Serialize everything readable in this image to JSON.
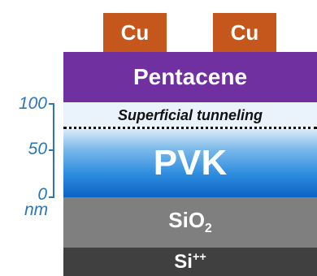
{
  "electrodes": [
    {
      "label": "Cu"
    },
    {
      "label": "Cu"
    }
  ],
  "layers": {
    "pentacene": "Pentacene",
    "tunneling": "Superficial tunneling",
    "pvk": "PVK",
    "sio2_base": "SiO",
    "sio2_sub": "2",
    "si_base": "Si",
    "si_sup": "++"
  },
  "scale": {
    "ticks": [
      "100",
      "50",
      "0"
    ],
    "unit": "nm",
    "color": "#2e75b6"
  },
  "colors": {
    "cu": "#c5571c",
    "pentacene": "#7030a0",
    "pvk": "#0b63c6",
    "sio2": "#7f7f7f",
    "si": "#404040"
  }
}
